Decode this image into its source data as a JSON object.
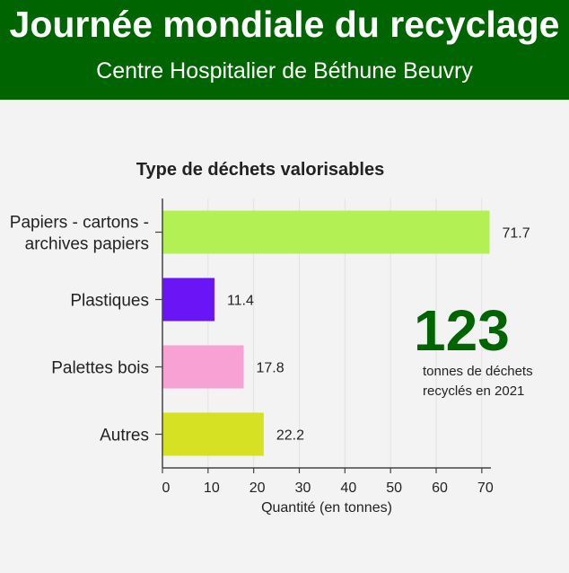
{
  "header": {
    "title": "Journée mondiale du recyclage",
    "subtitle": "Centre Hospitalier de Béthune Beuvry"
  },
  "colors": {
    "banner": "#006400",
    "background": "#f3f3f3",
    "callout_number": "#006400"
  },
  "chart_data": {
    "type": "bar",
    "orientation": "horizontal",
    "title": "Type de déchets valorisables",
    "xlabel": "Quantité (en tonnes)",
    "ylabel": "",
    "xlim": [
      0,
      72
    ],
    "xticks": [
      0,
      10,
      20,
      30,
      40,
      50,
      60,
      70
    ],
    "grid": true,
    "categories": [
      [
        "Papiers - cartons -",
        "archives papiers"
      ],
      [
        "Plastiques"
      ],
      [
        "Palettes bois"
      ],
      [
        "Autres"
      ]
    ],
    "values": [
      71.7,
      11.4,
      17.8,
      22.2
    ],
    "value_labels": [
      "71.7",
      "11.4",
      "17.8",
      "22.2"
    ],
    "colors": [
      "#b3f053",
      "#6a15f5",
      "#f7a1d4",
      "#d6e124"
    ]
  },
  "callout": {
    "number": "123",
    "text": "tonnes de déchets\nrecyclés en 2021"
  }
}
